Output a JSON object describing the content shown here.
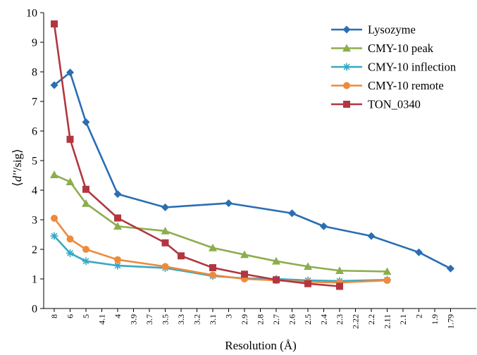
{
  "chart_data": {
    "type": "line",
    "title": "",
    "xlabel": "Resolution (Å)",
    "ylabel_parts": [
      "⟨",
      "d''",
      "/sig⟩"
    ],
    "ylim": [
      0,
      10
    ],
    "yticks": [
      "0",
      "1",
      "2",
      "3",
      "4",
      "5",
      "6",
      "7",
      "8",
      "9",
      "10"
    ],
    "categories": [
      "8",
      "6",
      "5",
      "4.1",
      "4",
      "3.9",
      "3.7",
      "3.5",
      "3.3",
      "3.2",
      "3.1",
      "3",
      "2.9",
      "2.8",
      "2.7",
      "2.6",
      "2.5",
      "2.4",
      "2.3",
      "2.22",
      "2.2",
      "2.11",
      "2.1",
      "2",
      "1.9",
      "1.79"
    ],
    "grid": false,
    "legend_position": "top-right",
    "series": [
      {
        "name": "Lysozyme",
        "color": "#2a6eb3",
        "marker": "diamond",
        "points": [
          {
            "x": "8",
            "y": 7.55
          },
          {
            "x": "6",
            "y": 7.98
          },
          {
            "x": "5",
            "y": 6.3
          },
          {
            "x": "4",
            "y": 3.87
          },
          {
            "x": "3.5",
            "y": 3.42
          },
          {
            "x": "3",
            "y": 3.56
          },
          {
            "x": "2.6",
            "y": 3.22
          },
          {
            "x": "2.4",
            "y": 2.78
          },
          {
            "x": "2.2",
            "y": 2.45
          },
          {
            "x": "2",
            "y": 1.9
          },
          {
            "x": "1.79",
            "y": 1.35
          }
        ]
      },
      {
        "name": "CMY-10 peak",
        "color": "#8cad4e",
        "marker": "triangle",
        "points": [
          {
            "x": "8",
            "y": 4.52
          },
          {
            "x": "6",
            "y": 4.28
          },
          {
            "x": "5",
            "y": 3.55
          },
          {
            "x": "4",
            "y": 2.78
          },
          {
            "x": "3.5",
            "y": 2.62
          },
          {
            "x": "3.1",
            "y": 2.05
          },
          {
            "x": "2.9",
            "y": 1.82
          },
          {
            "x": "2.7",
            "y": 1.6
          },
          {
            "x": "2.5",
            "y": 1.42
          },
          {
            "x": "2.3",
            "y": 1.28
          },
          {
            "x": "2.11",
            "y": 1.25
          }
        ]
      },
      {
        "name": "CMY-10 inflection",
        "color": "#36a9c4",
        "marker": "asterisk",
        "points": [
          {
            "x": "8",
            "y": 2.45
          },
          {
            "x": "6",
            "y": 1.87
          },
          {
            "x": "5",
            "y": 1.6
          },
          {
            "x": "4",
            "y": 1.45
          },
          {
            "x": "3.5",
            "y": 1.37
          },
          {
            "x": "3.1",
            "y": 1.1
          },
          {
            "x": "2.9",
            "y": 1.02
          },
          {
            "x": "2.7",
            "y": 1.0
          },
          {
            "x": "2.5",
            "y": 0.95
          },
          {
            "x": "2.3",
            "y": 0.93
          },
          {
            "x": "2.11",
            "y": 0.97
          }
        ]
      },
      {
        "name": "CMY-10 remote",
        "color": "#ee8a3c",
        "marker": "circle",
        "points": [
          {
            "x": "8",
            "y": 3.05
          },
          {
            "x": "6",
            "y": 2.35
          },
          {
            "x": "5",
            "y": 2.0
          },
          {
            "x": "4",
            "y": 1.65
          },
          {
            "x": "3.5",
            "y": 1.42
          },
          {
            "x": "3.1",
            "y": 1.13
          },
          {
            "x": "2.9",
            "y": 1.0
          },
          {
            "x": "2.7",
            "y": 0.95
          },
          {
            "x": "2.5",
            "y": 0.9
          },
          {
            "x": "2.3",
            "y": 0.88
          },
          {
            "x": "2.11",
            "y": 0.95
          }
        ]
      },
      {
        "name": "TON_0340",
        "color": "#b2363f",
        "marker": "square",
        "points": [
          {
            "x": "8",
            "y": 9.62
          },
          {
            "x": "6",
            "y": 5.72
          },
          {
            "x": "5",
            "y": 4.03
          },
          {
            "x": "4",
            "y": 3.06
          },
          {
            "x": "3.5",
            "y": 2.22
          },
          {
            "x": "3.3",
            "y": 1.78
          },
          {
            "x": "3.1",
            "y": 1.38
          },
          {
            "x": "2.9",
            "y": 1.16
          },
          {
            "x": "2.7",
            "y": 0.97
          },
          {
            "x": "2.5",
            "y": 0.84
          },
          {
            "x": "2.3",
            "y": 0.75
          }
        ]
      }
    ]
  }
}
